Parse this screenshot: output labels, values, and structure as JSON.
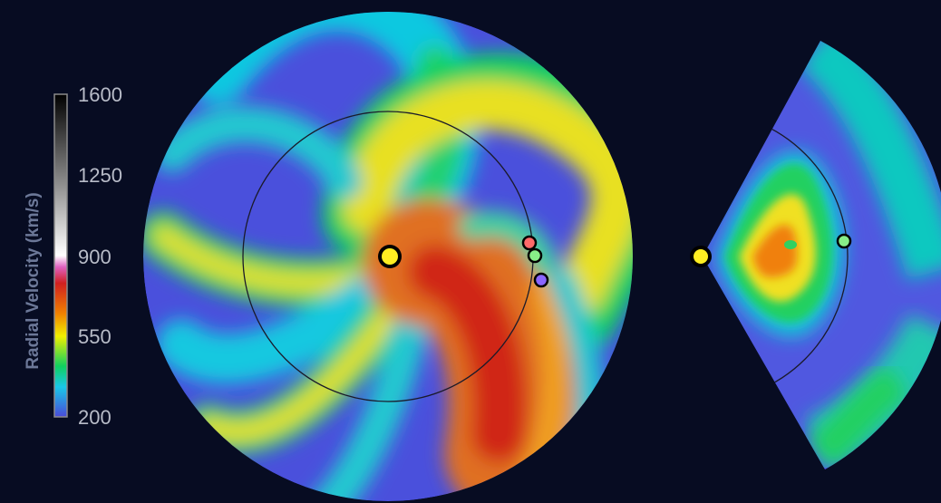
{
  "chart_data": {
    "type": "heatmap",
    "colorbar": {
      "label": "Radial Velocity (km/s)",
      "ticks": [
        1600,
        1250,
        900,
        550,
        200
      ],
      "range": [
        200,
        1600
      ],
      "stops": [
        {
          "value": 200,
          "color": "#4a4ad8"
        },
        {
          "value": 330,
          "color": "#19c8e8"
        },
        {
          "value": 420,
          "color": "#10d060"
        },
        {
          "value": 550,
          "color": "#f0f000"
        },
        {
          "value": 650,
          "color": "#f08000"
        },
        {
          "value": 780,
          "color": "#d02020"
        },
        {
          "value": 850,
          "color": "#e060c0"
        },
        {
          "value": 900,
          "color": "#ffffff"
        },
        {
          "value": 1600,
          "color": "#000000"
        }
      ]
    },
    "panels": [
      {
        "view": "ecliptic plane",
        "shape": "disc",
        "markers": [
          {
            "object": "sun",
            "color": "#ffee22"
          },
          {
            "object": "body",
            "color": "#ff6a6a"
          },
          {
            "object": "earth",
            "color": "#88ee88"
          },
          {
            "object": "body",
            "color": "#8a66ff"
          }
        ]
      },
      {
        "view": "meridional plane",
        "shape": "wedge",
        "markers": [
          {
            "object": "sun",
            "color": "#ffee22"
          },
          {
            "object": "earth",
            "color": "#88ee88"
          }
        ]
      }
    ]
  }
}
